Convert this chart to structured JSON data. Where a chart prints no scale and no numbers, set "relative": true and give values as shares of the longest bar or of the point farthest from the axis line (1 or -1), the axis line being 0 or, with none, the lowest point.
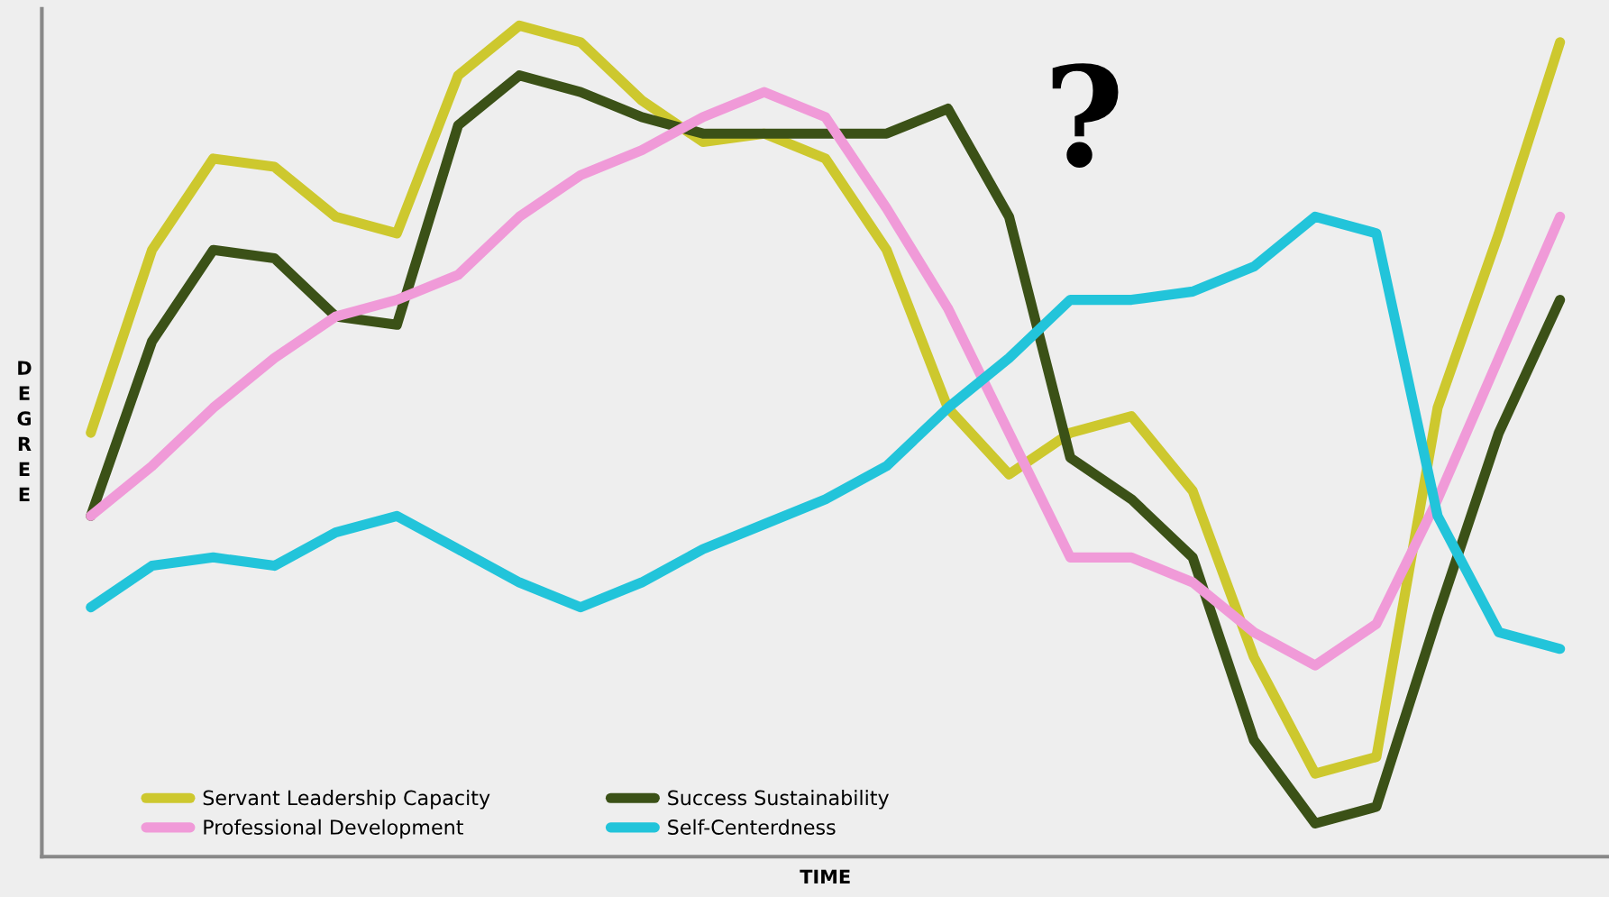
{
  "chart_data": {
    "type": "line",
    "relative": true,
    "xlabel": "TIME",
    "ylabel": "DEGREE",
    "legend": "bottom left",
    "grid": false,
    "marker": "none",
    "line_style": "solid",
    "tick_labels": false,
    "annotations": [
      "?"
    ],
    "categories": [
      null,
      null,
      null,
      null,
      null,
      null,
      null,
      null,
      null,
      null,
      null,
      null,
      null,
      null,
      null,
      null,
      null,
      null,
      null,
      null,
      null,
      null,
      null,
      null,
      null
    ],
    "series": [
      {
        "name": "Servant Leadership Capacity",
        "color": "#cdc82e",
        "values": [
          0.51,
          0.73,
          0.84,
          0.83,
          0.77,
          0.75,
          0.94,
          1.0,
          0.98,
          0.91,
          0.86,
          0.87,
          0.84,
          0.73,
          0.54,
          0.46,
          0.51,
          0.53,
          0.44,
          0.24,
          0.1,
          0.12,
          0.54,
          0.75,
          0.98
        ]
      },
      {
        "name": "Success Sustainability",
        "color": "#3b5117",
        "values": [
          0.41,
          0.62,
          0.73,
          0.72,
          0.65,
          0.64,
          0.88,
          0.94,
          0.92,
          0.89,
          0.87,
          0.87,
          0.87,
          0.87,
          0.9,
          0.77,
          0.48,
          0.43,
          0.36,
          0.14,
          0.04,
          0.06,
          0.29,
          0.51,
          0.67
        ]
      },
      {
        "name": "Professional Development",
        "color": "#f09ad8",
        "values": [
          0.41,
          0.47,
          0.54,
          0.6,
          0.65,
          0.67,
          0.7,
          0.77,
          0.82,
          0.85,
          0.89,
          0.92,
          0.89,
          0.78,
          0.66,
          0.51,
          0.36,
          0.36,
          0.33,
          0.27,
          0.23,
          0.28,
          0.43,
          0.6,
          0.77
        ]
      },
      {
        "name": "Self-Centerdness",
        "color": "#22c4da",
        "values": [
          0.3,
          0.35,
          0.36,
          0.35,
          0.39,
          0.41,
          0.37,
          0.33,
          0.3,
          0.33,
          0.37,
          0.4,
          0.43,
          0.47,
          0.54,
          0.6,
          0.67,
          0.67,
          0.68,
          0.71,
          0.77,
          0.75,
          0.41,
          0.27,
          0.25
        ]
      }
    ]
  }
}
